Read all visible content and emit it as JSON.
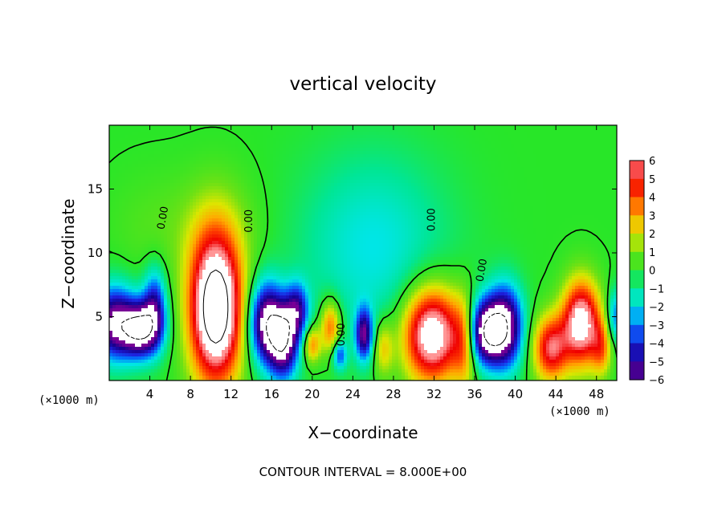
{
  "chart_data": {
    "type": "heatmap",
    "title": "vertical velocity",
    "xlabel": "X−coordinate",
    "ylabel": "Z−coordinate",
    "x_unit": "(×1000 m)",
    "x_ticks": [
      4,
      8,
      12,
      16,
      20,
      24,
      28,
      32,
      36,
      40,
      44,
      48
    ],
    "y_ticks": [
      5,
      10,
      15
    ],
    "xlim": [
      0,
      50
    ],
    "ylim": [
      0,
      20
    ],
    "colorbar": {
      "levels": [
        "6",
        "5",
        "4",
        "3",
        "2",
        "1",
        "0",
        "−1",
        "−2",
        "−3",
        "−4",
        "−5",
        "−6"
      ],
      "min": -6,
      "max": 6
    },
    "footer": "CONTOUR INTERVAL =  8.000E+00",
    "contour_labels": [
      {
        "text": "0.00",
        "x": 5.6,
        "y": 12.7,
        "rot": -80
      },
      {
        "text": "0.00",
        "x": 14.1,
        "y": 12.5,
        "rot": -90
      },
      {
        "text": "0.00",
        "x": 23.2,
        "y": 3.6,
        "rot": -90
      },
      {
        "text": "0.00",
        "x": 32.1,
        "y": 12.6,
        "rot": -90
      },
      {
        "text": "0.00",
        "x": 37.0,
        "y": 8.6,
        "rot": -80
      }
    ],
    "features": [
      {
        "x": 0.5,
        "z": 4.5,
        "w": -6.5,
        "sx": 1.5,
        "sz": 2.0
      },
      {
        "x": 3.2,
        "z": 4.0,
        "w": -7.5,
        "sx": 1.3,
        "sz": 1.5
      },
      {
        "x": 4.5,
        "z": 6.0,
        "w": -4.0,
        "sx": 0.8,
        "sz": 2.0
      },
      {
        "x": 10.5,
        "z": 5.6,
        "w": 10.0,
        "sx": 1.8,
        "sz": 4.0
      },
      {
        "x": 15.5,
        "z": 4.5,
        "w": -7.0,
        "sx": 1.2,
        "sz": 2.2
      },
      {
        "x": 17.2,
        "z": 3.0,
        "w": -6.5,
        "sx": 1.0,
        "sz": 2.0
      },
      {
        "x": 18.5,
        "z": 5.5,
        "w": -4.5,
        "sx": 0.8,
        "sz": 1.5
      },
      {
        "x": 20.0,
        "z": 2.8,
        "w": 3.5,
        "sx": 0.6,
        "sz": 1.0
      },
      {
        "x": 21.8,
        "z": 4.2,
        "w": 4.0,
        "sx": 0.7,
        "sz": 1.5
      },
      {
        "x": 22.7,
        "z": 2.0,
        "w": -3.5,
        "sx": 0.5,
        "sz": 0.8
      },
      {
        "x": 25.1,
        "z": 3.6,
        "w": -5.5,
        "sx": 0.6,
        "sz": 1.4
      },
      {
        "x": 27.0,
        "z": 2.5,
        "w": 2.5,
        "sx": 0.7,
        "sz": 1.5
      },
      {
        "x": 31.8,
        "z": 3.6,
        "w": 8.0,
        "sx": 2.0,
        "sz": 2.6
      },
      {
        "x": 35.0,
        "z": 3.0,
        "w": 3.0,
        "sx": 0.8,
        "sz": 2.5
      },
      {
        "x": 37.0,
        "z": 3.8,
        "w": -7.0,
        "sx": 1.2,
        "sz": 1.8
      },
      {
        "x": 39.0,
        "z": 4.2,
        "w": -7.0,
        "sx": 1.2,
        "sz": 2.2
      },
      {
        "x": 43.5,
        "z": 2.5,
        "w": 5.5,
        "sx": 1.2,
        "sz": 1.8
      },
      {
        "x": 46.5,
        "z": 4.5,
        "w": 7.5,
        "sx": 1.3,
        "sz": 2.3
      },
      {
        "x": 48.5,
        "z": 2.5,
        "w": 3.0,
        "sx": 0.7,
        "sz": 1.5
      },
      {
        "x": 49.9,
        "z": 5.0,
        "w": -3.0,
        "sx": 0.6,
        "sz": 1.5
      },
      {
        "x": 26.0,
        "z": 10.5,
        "w": -2.0,
        "sx": 5.0,
        "sz": 5.0
      },
      {
        "x": 10.5,
        "z": 12.0,
        "w": 1.0,
        "sx": 3.0,
        "sz": 3.0
      },
      {
        "x": 4.0,
        "z": 12.0,
        "w": 0.5,
        "sx": 3.0,
        "sz": 3.0
      }
    ]
  }
}
